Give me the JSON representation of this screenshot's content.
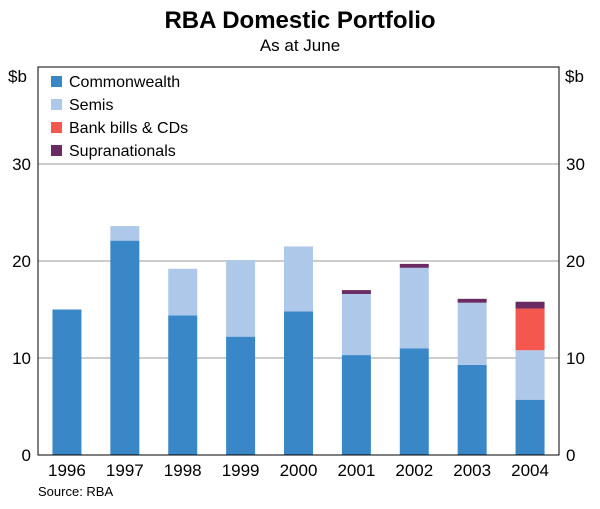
{
  "chart_data": {
    "type": "bar",
    "stacked": true,
    "title": "RBA Domestic Portfolio",
    "subtitle": "As at June",
    "unit_left": "$b",
    "unit_right": "$b",
    "categories": [
      "1996",
      "1997",
      "1998",
      "1999",
      "2000",
      "2001",
      "2002",
      "2003",
      "2004"
    ],
    "ylim": [
      0,
      40
    ],
    "yticks": [
      0,
      10,
      20,
      30
    ],
    "grid": true,
    "legend_position": "top-left",
    "series": [
      {
        "name": "Commonwealth",
        "color": "#3a87c8",
        "values": [
          15.0,
          22.1,
          14.4,
          12.2,
          14.8,
          10.3,
          11.0,
          9.3,
          5.7
        ]
      },
      {
        "name": "Semis",
        "color": "#aec8ea",
        "values": [
          0.0,
          1.5,
          4.8,
          7.9,
          6.7,
          6.3,
          8.3,
          6.4,
          5.1
        ]
      },
      {
        "name": "Bank bills & CDs",
        "color": "#f4574d",
        "values": [
          0,
          0,
          0,
          0,
          0,
          0,
          0,
          0,
          4.3
        ]
      },
      {
        "name": "Supranationals",
        "color": "#6a2b63",
        "values": [
          0,
          0,
          0,
          0,
          0,
          0.4,
          0.4,
          0.4,
          0.7
        ]
      }
    ],
    "source": "Source: RBA"
  }
}
